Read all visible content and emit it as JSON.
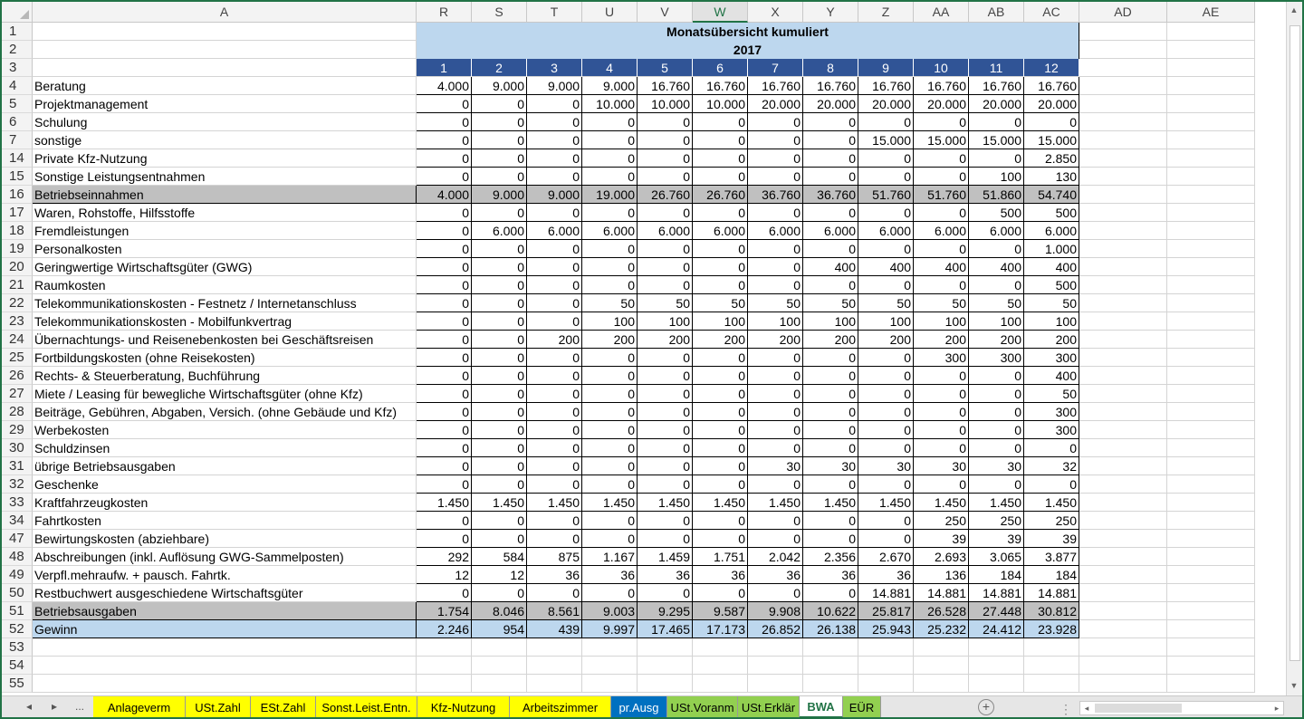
{
  "columns": [
    "A",
    "R",
    "S",
    "T",
    "U",
    "V",
    "W",
    "X",
    "Y",
    "Z",
    "AA",
    "AB",
    "AC",
    "AD",
    "AE"
  ],
  "selected_column": "W",
  "title_line1": "Monatsübersicht kumuliert",
  "title_line2": "2017",
  "months": [
    "1",
    "2",
    "3",
    "4",
    "5",
    "6",
    "7",
    "8",
    "9",
    "10",
    "11",
    "12"
  ],
  "rows": [
    {
      "num": "4",
      "label": "Beratung",
      "values": [
        "4.000",
        "9.000",
        "9.000",
        "9.000",
        "16.760",
        "16.760",
        "16.760",
        "16.760",
        "16.760",
        "16.760",
        "16.760",
        "16.760"
      ]
    },
    {
      "num": "5",
      "label": "Projektmanagement",
      "values": [
        "0",
        "0",
        "0",
        "10.000",
        "10.000",
        "10.000",
        "20.000",
        "20.000",
        "20.000",
        "20.000",
        "20.000",
        "20.000"
      ]
    },
    {
      "num": "6",
      "label": "Schulung",
      "values": [
        "0",
        "0",
        "0",
        "0",
        "0",
        "0",
        "0",
        "0",
        "0",
        "0",
        "0",
        "0"
      ]
    },
    {
      "num": "7",
      "label": "sonstige",
      "values": [
        "0",
        "0",
        "0",
        "0",
        "0",
        "0",
        "0",
        "0",
        "15.000",
        "15.000",
        "15.000",
        "15.000"
      ]
    },
    {
      "num": "14",
      "label": "Private Kfz-Nutzung",
      "values": [
        "0",
        "0",
        "0",
        "0",
        "0",
        "0",
        "0",
        "0",
        "0",
        "0",
        "0",
        "2.850"
      ]
    },
    {
      "num": "15",
      "label": "Sonstige Leistungsentnahmen",
      "values": [
        "0",
        "0",
        "0",
        "0",
        "0",
        "0",
        "0",
        "0",
        "0",
        "0",
        "100",
        "130"
      ]
    },
    {
      "num": "16",
      "label": "Betriebseinnahmen",
      "style": "gray",
      "values": [
        "4.000",
        "9.000",
        "9.000",
        "19.000",
        "26.760",
        "26.760",
        "36.760",
        "36.760",
        "51.760",
        "51.760",
        "51.860",
        "54.740"
      ]
    },
    {
      "num": "17",
      "label": "Waren, Rohstoffe, Hilfsstoffe",
      "values": [
        "0",
        "0",
        "0",
        "0",
        "0",
        "0",
        "0",
        "0",
        "0",
        "0",
        "500",
        "500"
      ]
    },
    {
      "num": "18",
      "label": "Fremdleistungen",
      "values": [
        "0",
        "6.000",
        "6.000",
        "6.000",
        "6.000",
        "6.000",
        "6.000",
        "6.000",
        "6.000",
        "6.000",
        "6.000",
        "6.000"
      ]
    },
    {
      "num": "19",
      "label": "Personalkosten",
      "values": [
        "0",
        "0",
        "0",
        "0",
        "0",
        "0",
        "0",
        "0",
        "0",
        "0",
        "0",
        "1.000"
      ]
    },
    {
      "num": "20",
      "label": "Geringwertige Wirtschaftsgüter (GWG)",
      "values": [
        "0",
        "0",
        "0",
        "0",
        "0",
        "0",
        "0",
        "400",
        "400",
        "400",
        "400",
        "400"
      ]
    },
    {
      "num": "21",
      "label": "Raumkosten",
      "values": [
        "0",
        "0",
        "0",
        "0",
        "0",
        "0",
        "0",
        "0",
        "0",
        "0",
        "0",
        "500"
      ]
    },
    {
      "num": "22",
      "label": "Telekommunikationskosten - Festnetz / Internetanschluss",
      "values": [
        "0",
        "0",
        "0",
        "50",
        "50",
        "50",
        "50",
        "50",
        "50",
        "50",
        "50",
        "50"
      ]
    },
    {
      "num": "23",
      "label": "Telekommunikationskosten - Mobilfunkvertrag",
      "values": [
        "0",
        "0",
        "0",
        "100",
        "100",
        "100",
        "100",
        "100",
        "100",
        "100",
        "100",
        "100"
      ]
    },
    {
      "num": "24",
      "label": "Übernachtungs- und Reisenebenkosten bei Geschäftsreisen",
      "values": [
        "0",
        "0",
        "200",
        "200",
        "200",
        "200",
        "200",
        "200",
        "200",
        "200",
        "200",
        "200"
      ]
    },
    {
      "num": "25",
      "label": "Fortbildungskosten (ohne Reisekosten)",
      "values": [
        "0",
        "0",
        "0",
        "0",
        "0",
        "0",
        "0",
        "0",
        "0",
        "300",
        "300",
        "300"
      ]
    },
    {
      "num": "26",
      "label": "Rechts- & Steuerberatung, Buchführung",
      "values": [
        "0",
        "0",
        "0",
        "0",
        "0",
        "0",
        "0",
        "0",
        "0",
        "0",
        "0",
        "400"
      ]
    },
    {
      "num": "27",
      "label": "Miete / Leasing für bewegliche Wirtschaftsgüter (ohne Kfz)",
      "values": [
        "0",
        "0",
        "0",
        "0",
        "0",
        "0",
        "0",
        "0",
        "0",
        "0",
        "0",
        "50"
      ]
    },
    {
      "num": "28",
      "label": "Beiträge, Gebühren, Abgaben, Versich. (ohne Gebäude und Kfz)",
      "values": [
        "0",
        "0",
        "0",
        "0",
        "0",
        "0",
        "0",
        "0",
        "0",
        "0",
        "0",
        "300"
      ]
    },
    {
      "num": "29",
      "label": "Werbekosten",
      "values": [
        "0",
        "0",
        "0",
        "0",
        "0",
        "0",
        "0",
        "0",
        "0",
        "0",
        "0",
        "300"
      ]
    },
    {
      "num": "30",
      "label": "Schuldzinsen",
      "values": [
        "0",
        "0",
        "0",
        "0",
        "0",
        "0",
        "0",
        "0",
        "0",
        "0",
        "0",
        "0"
      ]
    },
    {
      "num": "31",
      "label": "übrige Betriebsausgaben",
      "values": [
        "0",
        "0",
        "0",
        "0",
        "0",
        "0",
        "30",
        "30",
        "30",
        "30",
        "30",
        "32"
      ]
    },
    {
      "num": "32",
      "label": "Geschenke",
      "values": [
        "0",
        "0",
        "0",
        "0",
        "0",
        "0",
        "0",
        "0",
        "0",
        "0",
        "0",
        "0"
      ]
    },
    {
      "num": "33",
      "label": "Kraftfahrzeugkosten",
      "values": [
        "1.450",
        "1.450",
        "1.450",
        "1.450",
        "1.450",
        "1.450",
        "1.450",
        "1.450",
        "1.450",
        "1.450",
        "1.450",
        "1.450"
      ]
    },
    {
      "num": "34",
      "label": "Fahrtkosten",
      "values": [
        "0",
        "0",
        "0",
        "0",
        "0",
        "0",
        "0",
        "0",
        "0",
        "250",
        "250",
        "250"
      ]
    },
    {
      "num": "47",
      "label": "Bewirtungskosten (abziehbare)",
      "values": [
        "0",
        "0",
        "0",
        "0",
        "0",
        "0",
        "0",
        "0",
        "0",
        "39",
        "39",
        "39"
      ]
    },
    {
      "num": "48",
      "label": "Abschreibungen (inkl. Auflösung GWG-Sammelposten)",
      "values": [
        "292",
        "584",
        "875",
        "1.167",
        "1.459",
        "1.751",
        "2.042",
        "2.356",
        "2.670",
        "2.693",
        "3.065",
        "3.877"
      ]
    },
    {
      "num": "49",
      "label": "Verpfl.mehraufw. + pausch. Fahrtk.",
      "values": [
        "12",
        "12",
        "36",
        "36",
        "36",
        "36",
        "36",
        "36",
        "36",
        "136",
        "184",
        "184"
      ]
    },
    {
      "num": "50",
      "label": "Restbuchwert ausgeschiedene Wirtschaftsgüter",
      "values": [
        "0",
        "0",
        "0",
        "0",
        "0",
        "0",
        "0",
        "0",
        "14.881",
        "14.881",
        "14.881",
        "14.881"
      ]
    },
    {
      "num": "51",
      "label": "Betriebsausgaben",
      "style": "gray",
      "values": [
        "1.754",
        "8.046",
        "8.561",
        "9.003",
        "9.295",
        "9.587",
        "9.908",
        "10.622",
        "25.817",
        "26.528",
        "27.448",
        "30.812"
      ]
    },
    {
      "num": "52",
      "label": "Gewinn",
      "style": "blue",
      "values": [
        "2.246",
        "954",
        "439",
        "9.997",
        "17.465",
        "17.173",
        "26.852",
        "26.138",
        "25.943",
        "25.232",
        "24.412",
        "23.928"
      ]
    }
  ],
  "header_rows": [
    "1",
    "2",
    "3"
  ],
  "empty_rows": [
    "53",
    "54",
    "55"
  ],
  "tabs": [
    {
      "label": "Anlageverm",
      "color": "#ffff00"
    },
    {
      "label": "USt.Zahl",
      "color": "#ffff00"
    },
    {
      "label": "ESt.Zahl",
      "color": "#ffff00"
    },
    {
      "label": "Sonst.Leist.Entn.",
      "color": "#ffff00"
    },
    {
      "label": "Kfz-Nutzung",
      "color": "#ffff00"
    },
    {
      "label": "Arbeitszimmer",
      "color": "#ffff00"
    },
    {
      "label": "pr.Ausg",
      "color": "#0070c0"
    },
    {
      "label": "USt.Voranm",
      "color": "#92d050"
    },
    {
      "label": "USt.Erklär",
      "color": "#92d050"
    },
    {
      "label": "BWA",
      "color": "#ffffff",
      "active": true
    },
    {
      "label": "EÜR",
      "color": "#92d050"
    }
  ],
  "nav": {
    "prev": "◂",
    "next": "▸",
    "more": "..."
  },
  "add_sheet": "+",
  "colors": {
    "accent": "#217346",
    "month_header": "#305496",
    "title_fill": "#bdd7ee",
    "total_fill": "#c0c0c0"
  }
}
